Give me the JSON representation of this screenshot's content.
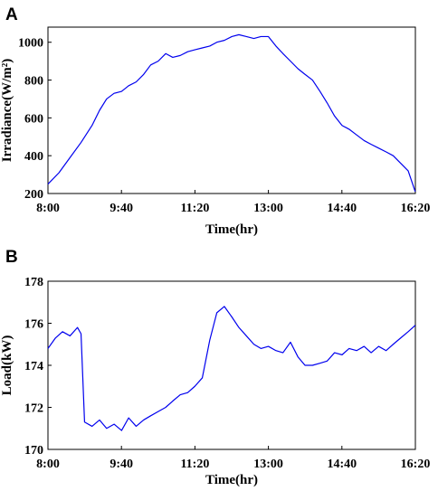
{
  "chart_data": [
    {
      "panel": "A",
      "type": "line",
      "xlabel": "Time(hr)",
      "ylabel": "Irradiance(W/m²)",
      "x_ticks": [
        "8:00",
        "9:40",
        "11:20",
        "13:00",
        "14:40",
        "16:20"
      ],
      "x_tick_hours": [
        8.0,
        9.6667,
        11.3333,
        13.0,
        14.6667,
        16.3333
      ],
      "xlim": [
        8.0,
        16.3333
      ],
      "y_ticks": [
        200,
        400,
        600,
        800,
        1000
      ],
      "ylim": [
        200,
        1080
      ],
      "grid": false,
      "color": "#0000ee",
      "series": [
        {
          "x": [
            8.0,
            8.25,
            8.5,
            8.75,
            9.0,
            9.17,
            9.33,
            9.5,
            9.67,
            9.83,
            10.0,
            10.17,
            10.33,
            10.5,
            10.67,
            10.83,
            11.0,
            11.17,
            11.33,
            11.5,
            11.67,
            11.83,
            12.0,
            12.17,
            12.33,
            12.5,
            12.67,
            12.83,
            13.0,
            13.17,
            13.33,
            13.5,
            13.67,
            13.83,
            14.0,
            14.17,
            14.33,
            14.5,
            14.67,
            14.83,
            15.0,
            15.17,
            15.33,
            15.5,
            15.67,
            15.83,
            16.0,
            16.17,
            16.33
          ],
          "y": [
            250,
            310,
            390,
            470,
            560,
            640,
            700,
            730,
            740,
            770,
            790,
            830,
            880,
            900,
            940,
            920,
            930,
            950,
            960,
            970,
            980,
            1000,
            1010,
            1030,
            1040,
            1030,
            1020,
            1030,
            1030,
            980,
            940,
            900,
            860,
            830,
            800,
            740,
            680,
            610,
            560,
            540,
            510,
            480,
            460,
            440,
            420,
            400,
            360,
            320,
            210
          ]
        }
      ]
    },
    {
      "panel": "B",
      "type": "line",
      "xlabel": "Time(hr)",
      "ylabel": "Load(kW)",
      "x_ticks": [
        "8:00",
        "9:40",
        "11:20",
        "13:00",
        "14:40",
        "16:20"
      ],
      "x_tick_hours": [
        8.0,
        9.6667,
        11.3333,
        13.0,
        14.6667,
        16.3333
      ],
      "xlim": [
        8.0,
        16.3333
      ],
      "y_ticks": [
        170,
        172,
        174,
        176,
        178
      ],
      "ylim": [
        170,
        178
      ],
      "grid": false,
      "color": "#0000ee",
      "series": [
        {
          "x": [
            8.0,
            8.17,
            8.33,
            8.5,
            8.67,
            8.75,
            8.83,
            9.0,
            9.17,
            9.33,
            9.5,
            9.67,
            9.83,
            10.0,
            10.17,
            10.33,
            10.5,
            10.67,
            10.83,
            11.0,
            11.17,
            11.33,
            11.5,
            11.67,
            11.83,
            12.0,
            12.17,
            12.33,
            12.5,
            12.67,
            12.83,
            13.0,
            13.17,
            13.33,
            13.5,
            13.67,
            13.83,
            14.0,
            14.17,
            14.33,
            14.5,
            14.67,
            14.83,
            15.0,
            15.17,
            15.33,
            15.5,
            15.67,
            15.83,
            16.0,
            16.17,
            16.33
          ],
          "y": [
            174.8,
            175.3,
            175.6,
            175.4,
            175.8,
            175.5,
            171.3,
            171.1,
            171.4,
            171.0,
            171.2,
            170.9,
            171.5,
            171.1,
            171.4,
            171.6,
            171.8,
            172.0,
            172.3,
            172.6,
            172.7,
            173.0,
            173.4,
            175.2,
            176.5,
            176.8,
            176.3,
            175.8,
            175.4,
            175.0,
            174.8,
            174.9,
            174.7,
            174.6,
            175.1,
            174.4,
            174.0,
            174.0,
            174.1,
            174.2,
            174.6,
            174.5,
            174.8,
            174.7,
            174.9,
            174.6,
            174.9,
            174.7,
            175.0,
            175.3,
            175.6,
            175.9
          ]
        }
      ]
    }
  ]
}
